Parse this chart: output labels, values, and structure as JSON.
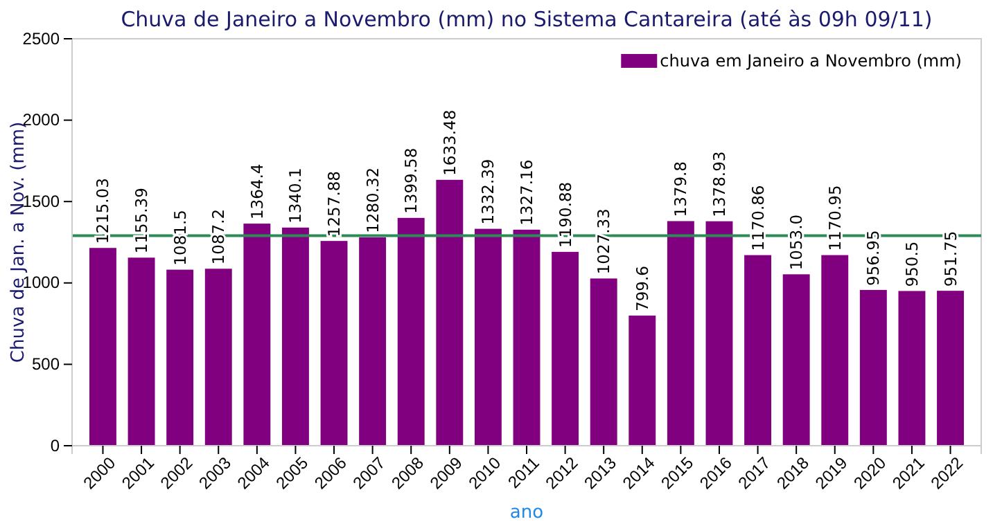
{
  "chart_data": {
    "type": "bar",
    "title": "Chuva de Janeiro a Novembro (mm) no Sistema Cantareira (até às 09h 09/11)",
    "xlabel": "ano",
    "ylabel": "Chuva de Jan. a Nov. (mm)",
    "categories": [
      "2000",
      "2001",
      "2002",
      "2003",
      "2004",
      "2005",
      "2006",
      "2007",
      "2008",
      "2009",
      "2010",
      "2011",
      "2012",
      "2013",
      "2014",
      "2015",
      "2016",
      "2017",
      "2018",
      "2019",
      "2020",
      "2021",
      "2022"
    ],
    "series": [
      {
        "name": "chuva em Janeiro a Novembro (mm)",
        "color": "#800080",
        "values": [
          1215.03,
          1155.39,
          1081.5,
          1087.2,
          1364.4,
          1340.1,
          1257.88,
          1280.32,
          1399.58,
          1633.48,
          1332.39,
          1327.16,
          1190.88,
          1027.33,
          799.6,
          1379.8,
          1378.93,
          1170.86,
          1053.0,
          1170.95,
          956.95,
          950.5,
          951.75
        ]
      }
    ],
    "value_labels": [
      "1215.03",
      "1155.39",
      "1081.5",
      "1087.2",
      "1364.4",
      "1340.1",
      "1257.88",
      "1280.32",
      "1399.58",
      "1633.48",
      "1332.39",
      "1327.16",
      "1190.88",
      "1027.33",
      "799.6",
      "1379.8",
      "1378.93",
      "1170.86",
      "1053.0",
      "1170.95",
      "956.95",
      "950.5",
      "951.75"
    ],
    "ylim": [
      0,
      2500
    ],
    "yticks": [
      0,
      500,
      1000,
      1500,
      2000,
      2500
    ],
    "grid": false,
    "legend": "top right",
    "ref_lines": [
      {
        "axis": "y",
        "value": 1290,
        "color": "#2e8b57"
      }
    ]
  }
}
